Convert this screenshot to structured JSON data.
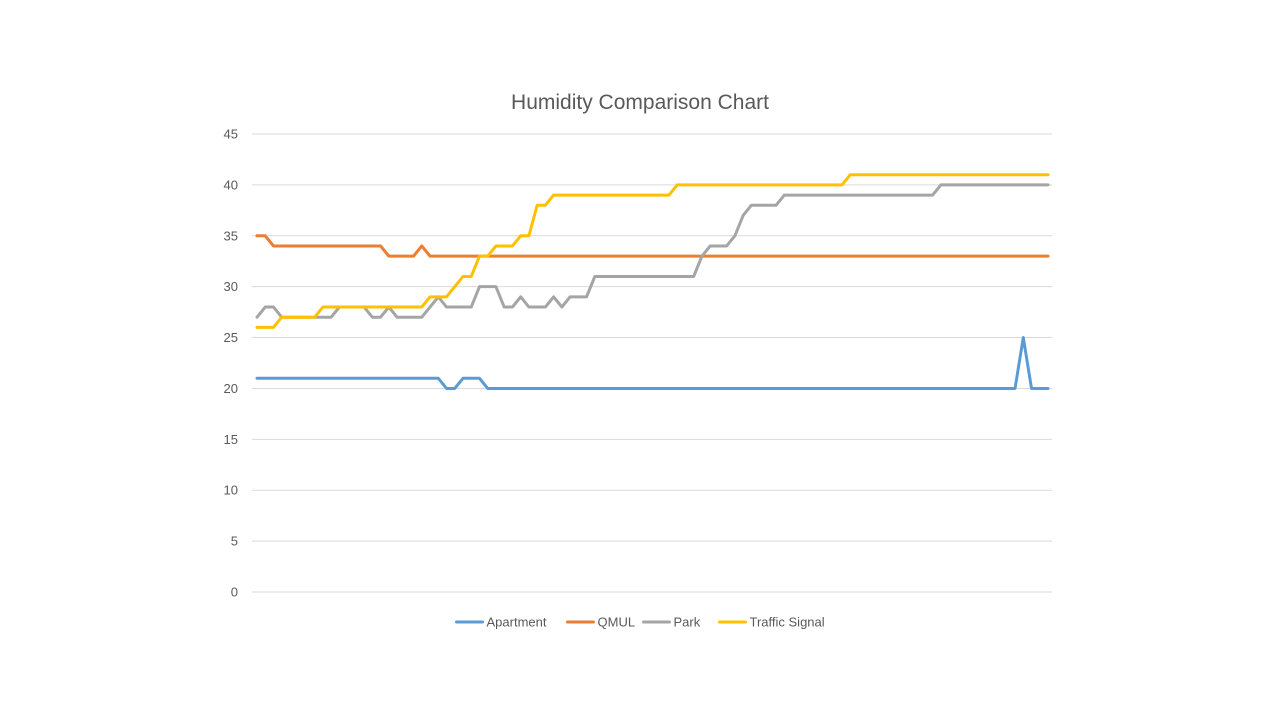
{
  "chart_data": {
    "type": "line",
    "title": "Humidity Comparison Chart",
    "xlabel": "",
    "ylabel": "",
    "ylim": [
      0,
      45
    ],
    "yticks": [
      0,
      5,
      10,
      15,
      20,
      25,
      30,
      35,
      40,
      45
    ],
    "grid": true,
    "legend_position": "bottom",
    "x": [
      1,
      2,
      3,
      4,
      5,
      6,
      7,
      8,
      9,
      10,
      11,
      12,
      13,
      14,
      15,
      16,
      17,
      18,
      19,
      20,
      21,
      22,
      23,
      24,
      25,
      26,
      27,
      28,
      29,
      30,
      31,
      32,
      33,
      34,
      35,
      36,
      37,
      38,
      39,
      40,
      41,
      42,
      43,
      44,
      45,
      46,
      47,
      48,
      49,
      50,
      51,
      52,
      53,
      54,
      55,
      56,
      57,
      58,
      59,
      60,
      61,
      62,
      63,
      64,
      65,
      66,
      67,
      68,
      69,
      70,
      71,
      72,
      73,
      74,
      75,
      76,
      77,
      78,
      79,
      80,
      81,
      82,
      83,
      84,
      85,
      86,
      87,
      88,
      89,
      90,
      91,
      92,
      93,
      94,
      95,
      96,
      97
    ],
    "series": [
      {
        "name": "Apartment",
        "color": "#5b9bd5",
        "values": [
          21,
          21,
          21,
          21,
          21,
          21,
          21,
          21,
          21,
          21,
          21,
          21,
          21,
          21,
          21,
          21,
          21,
          21,
          21,
          21,
          21,
          21,
          21,
          20,
          20,
          21,
          21,
          21,
          20,
          20,
          20,
          20,
          20,
          20,
          20,
          20,
          20,
          20,
          20,
          20,
          20,
          20,
          20,
          20,
          20,
          20,
          20,
          20,
          20,
          20,
          20,
          20,
          20,
          20,
          20,
          20,
          20,
          20,
          20,
          20,
          20,
          20,
          20,
          20,
          20,
          20,
          20,
          20,
          20,
          20,
          20,
          20,
          20,
          20,
          20,
          20,
          20,
          20,
          20,
          20,
          20,
          20,
          20,
          20,
          20,
          20,
          20,
          20,
          20,
          20,
          20,
          20,
          20,
          25,
          20,
          20,
          20
        ]
      },
      {
        "name": "QMUL",
        "color": "#ed7d31",
        "values": [
          35,
          35,
          34,
          34,
          34,
          34,
          34,
          34,
          34,
          34,
          34,
          34,
          34,
          34,
          34,
          34,
          33,
          33,
          33,
          33,
          34,
          33,
          33,
          33,
          33,
          33,
          33,
          33,
          33,
          33,
          33,
          33,
          33,
          33,
          33,
          33,
          33,
          33,
          33,
          33,
          33,
          33,
          33,
          33,
          33,
          33,
          33,
          33,
          33,
          33,
          33,
          33,
          33,
          33,
          33,
          33,
          33,
          33,
          33,
          33,
          33,
          33,
          33,
          33,
          33,
          33,
          33,
          33,
          33,
          33,
          33,
          33,
          33,
          33,
          33,
          33,
          33,
          33,
          33,
          33,
          33,
          33,
          33,
          33,
          33,
          33,
          33,
          33,
          33,
          33,
          33,
          33,
          33,
          33,
          33,
          33,
          33
        ]
      },
      {
        "name": "Park",
        "color": "#a5a5a5",
        "values": [
          27,
          28,
          28,
          27,
          27,
          27,
          27,
          27,
          27,
          27,
          28,
          28,
          28,
          28,
          27,
          27,
          28,
          27,
          27,
          27,
          27,
          28,
          29,
          28,
          28,
          28,
          28,
          30,
          30,
          30,
          28,
          28,
          29,
          28,
          28,
          28,
          29,
          28,
          29,
          29,
          29,
          31,
          31,
          31,
          31,
          31,
          31,
          31,
          31,
          31,
          31,
          31,
          31,
          31,
          33,
          34,
          34,
          34,
          35,
          37,
          38,
          38,
          38,
          38,
          39,
          39,
          39,
          39,
          39,
          39,
          39,
          39,
          39,
          39,
          39,
          39,
          39,
          39,
          39,
          39,
          39,
          39,
          39,
          40,
          40,
          40,
          40,
          40,
          40,
          40,
          40,
          40,
          40,
          40,
          40,
          40,
          40
        ]
      },
      {
        "name": "Traffic Signal",
        "color": "#ffc000",
        "values": [
          26,
          26,
          26,
          27,
          27,
          27,
          27,
          27,
          28,
          28,
          28,
          28,
          28,
          28,
          28,
          28,
          28,
          28,
          28,
          28,
          28,
          29,
          29,
          29,
          30,
          31,
          31,
          33,
          33,
          34,
          34,
          34,
          35,
          35,
          38,
          38,
          39,
          39,
          39,
          39,
          39,
          39,
          39,
          39,
          39,
          39,
          39,
          39,
          39,
          39,
          39,
          40,
          40,
          40,
          40,
          40,
          40,
          40,
          40,
          40,
          40,
          40,
          40,
          40,
          40,
          40,
          40,
          40,
          40,
          40,
          40,
          40,
          41,
          41,
          41,
          41,
          41,
          41,
          41,
          41,
          41,
          41,
          41,
          41,
          41,
          41,
          41,
          41,
          41,
          41,
          41,
          41,
          41,
          41,
          41,
          41,
          41
        ]
      }
    ]
  }
}
